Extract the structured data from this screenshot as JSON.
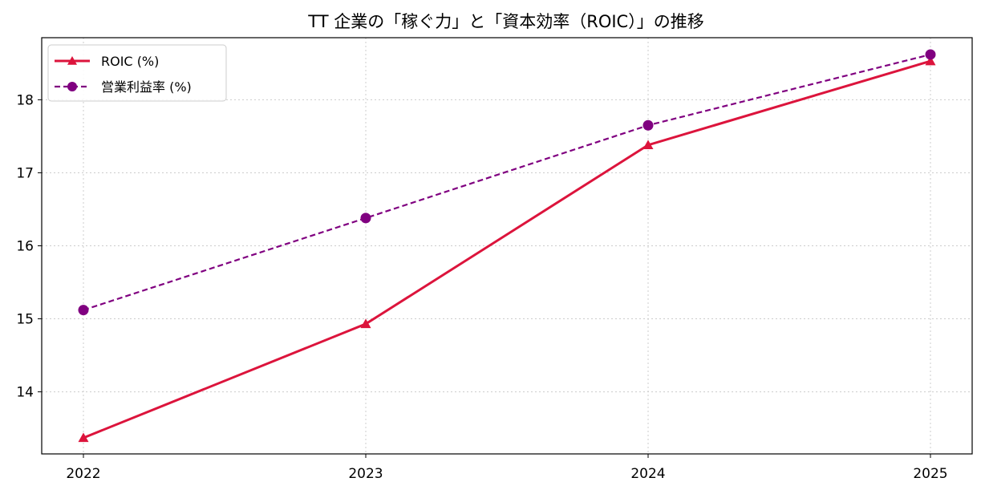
{
  "chart_data": {
    "type": "line",
    "title": "TT 企業の「稼ぐ力」と「資本効率（ROIC）」の推移",
    "xlabel": "",
    "ylabel": "",
    "categories": [
      "2022",
      "2023",
      "2024",
      "2025"
    ],
    "series": [
      {
        "name": "ROIC (%)",
        "values": [
          13.37,
          14.93,
          17.38,
          18.53
        ],
        "color": "#dc143c",
        "marker": "triangle",
        "line_style": "solid"
      },
      {
        "name": "営業利益率 (%)",
        "values": [
          15.12,
          16.38,
          17.65,
          18.62
        ],
        "color": "#800080",
        "marker": "circle",
        "line_style": "dashed"
      }
    ],
    "yticks": [
      14,
      15,
      16,
      17,
      18
    ],
    "ylim": [
      13.15,
      18.85
    ],
    "grid": true,
    "legend": "upper-left"
  }
}
